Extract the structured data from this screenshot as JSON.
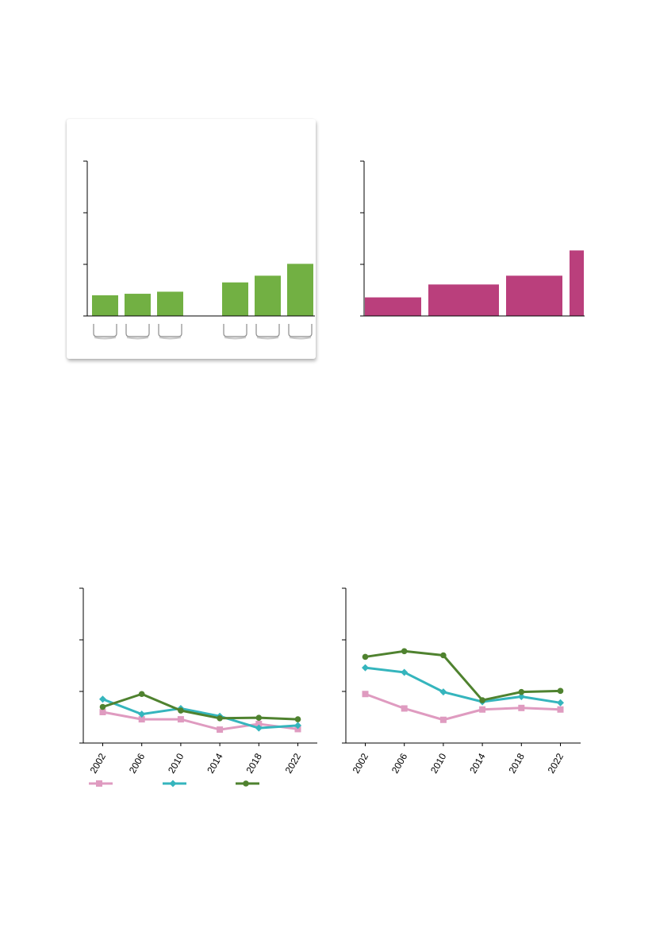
{
  "chart_data": [
    {
      "id": "bars-green",
      "type": "bar",
      "categories": [
        "",
        "",
        "",
        "",
        "",
        ""
      ],
      "values": [
        0.4,
        0.43,
        0.47,
        0.65,
        0.78,
        1.01
      ],
      "ylim": [
        0,
        3
      ],
      "yticks": [
        0,
        1,
        2,
        3
      ],
      "color": "#72b043",
      "grouping": [
        [
          0,
          1,
          2
        ],
        [
          3,
          4,
          5
        ]
      ]
    },
    {
      "id": "bars-magenta",
      "type": "bar",
      "categories": [
        "",
        "",
        "",
        ""
      ],
      "values": [
        0.36,
        0.61,
        0.78,
        1.27
      ],
      "ylim": [
        0,
        3
      ],
      "yticks": [
        0,
        1,
        2,
        3
      ],
      "color": "#ba3f7c"
    },
    {
      "id": "lines-left",
      "type": "line",
      "x": [
        "2002",
        "2006",
        "2010",
        "2014",
        "2018",
        "2022"
      ],
      "ylim": [
        0,
        3
      ],
      "yticks": [
        0,
        1,
        2,
        3
      ],
      "series": [
        {
          "values": [
            0.6,
            0.46,
            0.46,
            0.26,
            0.37,
            0.27
          ],
          "color": "#df9bc0",
          "marker": "square"
        },
        {
          "values": [
            0.85,
            0.56,
            0.67,
            0.52,
            0.29,
            0.34
          ],
          "color": "#35b5bd",
          "marker": "diamond"
        },
        {
          "values": [
            0.7,
            0.95,
            0.63,
            0.48,
            0.49,
            0.46
          ],
          "color": "#4f822f",
          "marker": "circle"
        }
      ]
    },
    {
      "id": "lines-right",
      "type": "line",
      "x": [
        "2002",
        "2006",
        "2010",
        "2014",
        "2018",
        "2022"
      ],
      "ylim": [
        0,
        3
      ],
      "yticks": [
        0,
        1,
        2,
        3
      ],
      "series": [
        {
          "values": [
            0.95,
            0.67,
            0.45,
            0.65,
            0.68,
            0.65
          ],
          "color": "#df9bc0",
          "marker": "square"
        },
        {
          "values": [
            1.46,
            1.37,
            0.99,
            0.8,
            0.9,
            0.78
          ],
          "color": "#35b5bd",
          "marker": "diamond"
        },
        {
          "values": [
            1.67,
            1.78,
            1.7,
            0.83,
            0.99,
            1.01
          ],
          "color": "#4f822f",
          "marker": "circle"
        }
      ]
    }
  ]
}
